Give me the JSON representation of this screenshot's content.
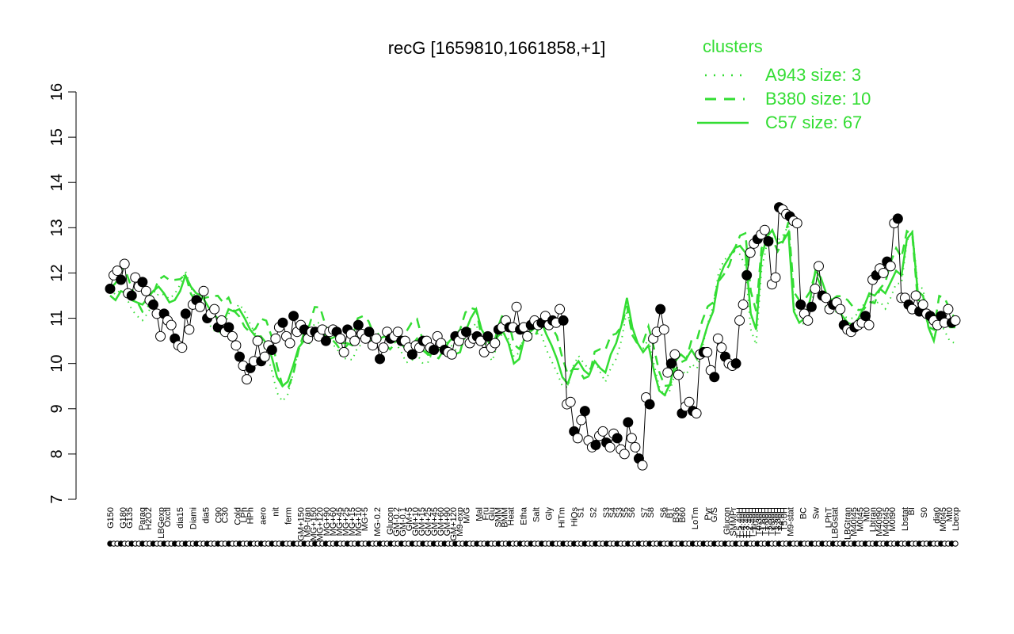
{
  "chart_data": {
    "type": "line",
    "title": "recG [1659810,1661858,+1]",
    "xlabel": "",
    "ylabel": "",
    "ylim": [
      7,
      16
    ],
    "yticks": [
      7,
      8,
      9,
      10,
      11,
      12,
      13,
      14,
      15,
      16
    ],
    "grid": false,
    "legend": {
      "title": "clusters",
      "placement": "top-right",
      "entries": [
        {
          "label": "A943 size: 3",
          "style": "dotted"
        },
        {
          "label": "B380 size: 10",
          "style": "dashed"
        },
        {
          "label": "C57 size: 67",
          "style": "solid"
        }
      ]
    },
    "colors": {
      "lines": "#33dd33",
      "points": "#000000",
      "legend_text": "#33dd33"
    },
    "x_tick_labels": [
      {
        "label": "G150",
        "x": 1
      },
      {
        "label": "G180",
        "x": 3
      },
      {
        "label": "G135",
        "x": 4
      },
      {
        "label": "Paraq",
        "x": 6
      },
      {
        "label": "H2O2",
        "x": 7
      },
      {
        "label": "LBGexp",
        "x": 9
      },
      {
        "label": "Oxctl",
        "x": 10
      },
      {
        "label": "dia15",
        "x": 12
      },
      {
        "label": "Diami",
        "x": 14
      },
      {
        "label": "dia5",
        "x": 16
      },
      {
        "label": "C90",
        "x": 18
      },
      {
        "label": "C30",
        "x": 19
      },
      {
        "label": "Cold",
        "x": 21
      },
      {
        "label": "LPh",
        "x": 22
      },
      {
        "label": "HPh",
        "x": 23
      },
      {
        "label": "aero",
        "x": 25
      },
      {
        "label": "nit",
        "x": 27
      },
      {
        "label": "ferm",
        "x": 29
      },
      {
        "label": "GM+150",
        "x": 31
      },
      {
        "label": "M9-tran",
        "x": 32
      },
      {
        "label": "MG+150",
        "x": 33
      },
      {
        "label": "MG+120",
        "x": 34
      },
      {
        "label": "MG+90",
        "x": 35
      },
      {
        "label": "MG+60",
        "x": 36
      },
      {
        "label": "MG+45",
        "x": 37
      },
      {
        "label": "MG+25",
        "x": 38
      },
      {
        "label": "MG+15",
        "x": 39
      },
      {
        "label": "MG+10",
        "x": 40
      },
      {
        "label": "MG+5",
        "x": 41
      },
      {
        "label": "MG-0.2",
        "x": 43
      },
      {
        "label": "Glucon",
        "x": 45
      },
      {
        "label": "GM-0.2",
        "x": 46
      },
      {
        "label": "GM-0.1",
        "x": 47
      },
      {
        "label": "GM+5",
        "x": 48
      },
      {
        "label": "GM+10",
        "x": 49
      },
      {
        "label": "GM+15",
        "x": 50
      },
      {
        "label": "GM+25",
        "x": 51
      },
      {
        "label": "GM+45",
        "x": 52
      },
      {
        "label": "GM+60",
        "x": 53
      },
      {
        "label": "GM+90",
        "x": 54
      },
      {
        "label": "GM+120",
        "x": 55
      },
      {
        "label": "M9-exp",
        "x": 56
      },
      {
        "label": "M/G",
        "x": 57
      },
      {
        "label": "Mal",
        "x": 59
      },
      {
        "label": "Fru",
        "x": 60
      },
      {
        "label": "Glu",
        "x": 61
      },
      {
        "label": "SMM",
        "x": 62
      },
      {
        "label": "BMM",
        "x": 63
      },
      {
        "label": "Heat",
        "x": 64
      },
      {
        "label": "Etha",
        "x": 66
      },
      {
        "label": "Salt",
        "x": 68
      },
      {
        "label": "Gly",
        "x": 70
      },
      {
        "label": "HiTm",
        "x": 72
      },
      {
        "label": "HiOs",
        "x": 74
      },
      {
        "label": "S1",
        "x": 75
      },
      {
        "label": "S2",
        "x": 77
      },
      {
        "label": "S3",
        "x": 79
      },
      {
        "label": "S4",
        "x": 80
      },
      {
        "label": "S3",
        "x": 81
      },
      {
        "label": "S5",
        "x": 82
      },
      {
        "label": "S6",
        "x": 83
      },
      {
        "label": "S7",
        "x": 85
      },
      {
        "label": "S8",
        "x": 86
      },
      {
        "label": "S6",
        "x": 88
      },
      {
        "label": "BT",
        "x": 89
      },
      {
        "label": "B36",
        "x": 90
      },
      {
        "label": "B60",
        "x": 91
      },
      {
        "label": "LoTm",
        "x": 93
      },
      {
        "label": "Pyr",
        "x": 95
      },
      {
        "label": "G/S",
        "x": 96
      },
      {
        "label": "Glucon",
        "x": 98
      },
      {
        "label": "SMMPr",
        "x": 99
      },
      {
        "label": "T-5.40H",
        "x": 100
      },
      {
        "label": "T-4.40H",
        "x": 100.5
      },
      {
        "label": "T-3.40H",
        "x": 101
      },
      {
        "label": "T-2.40H",
        "x": 101.5
      },
      {
        "label": "T-1.40H",
        "x": 102
      },
      {
        "label": "T0.0H",
        "x": 102.5
      },
      {
        "label": "T0.30H",
        "x": 103
      },
      {
        "label": "T1.0H",
        "x": 103.5
      },
      {
        "label": "T1.30H",
        "x": 104
      },
      {
        "label": "T2.0H",
        "x": 104.5
      },
      {
        "label": "T2.30H",
        "x": 105
      },
      {
        "label": "T3.0H",
        "x": 105.5
      },
      {
        "label": "T3.30H",
        "x": 106
      },
      {
        "label": "T4.0H",
        "x": 106.5
      },
      {
        "label": "T5.0H",
        "x": 107
      },
      {
        "label": "M9-stat",
        "x": 108
      },
      {
        "label": "BC",
        "x": 110
      },
      {
        "label": "Sw",
        "x": 112
      },
      {
        "label": "LPhT",
        "x": 114
      },
      {
        "label": "LBGstat",
        "x": 115
      },
      {
        "label": "LBGtran",
        "x": 117
      },
      {
        "label": "M40t45",
        "x": 118
      },
      {
        "label": "M0t45",
        "x": 119
      },
      {
        "label": "Mt0",
        "x": 120
      },
      {
        "label": "Lbtran",
        "x": 121
      },
      {
        "label": "M40t90",
        "x": 122
      },
      {
        "label": "M40t45",
        "x": 123
      },
      {
        "label": "M0t90",
        "x": 124
      },
      {
        "label": "Lbstat",
        "x": 126
      },
      {
        "label": "BI",
        "x": 127
      },
      {
        "label": "S0",
        "x": 129
      },
      {
        "label": "dia0",
        "x": 131
      },
      {
        "label": "M0t45",
        "x": 132
      },
      {
        "label": "Mt0",
        "x": 133
      },
      {
        "label": "Lbexp",
        "x": 134
      }
    ],
    "series": [
      {
        "name": "",
        "values": [
          11.65,
          11.95,
          12.05,
          11.85,
          12.2,
          11.55,
          11.5,
          11.9,
          11.7,
          11.8,
          11.6,
          11.4,
          11.3,
          11.1,
          10.6,
          11.1,
          10.95,
          10.85,
          10.55,
          10.4,
          10.35,
          11.1,
          10.75,
          11.3,
          11.4,
          11.25,
          11.6,
          11.0,
          11.1,
          11.2,
          10.8,
          10.95,
          10.7,
          10.8,
          10.6,
          10.4,
          10.15,
          9.95,
          9.65,
          9.9,
          10.05,
          10.5,
          10.05,
          10.15,
          10.4,
          10.3,
          10.55,
          10.8,
          10.9,
          10.6,
          10.45,
          11.05,
          10.7,
          10.85,
          10.75,
          10.55,
          10.7,
          10.7,
          10.6,
          10.75,
          10.5,
          10.7,
          10.75,
          10.7,
          10.55,
          10.25,
          10.75,
          10.65,
          10.5,
          10.85,
          10.65,
          10.55,
          10.7,
          10.4,
          10.55,
          10.1,
          10.35,
          10.7,
          10.55,
          10.6,
          10.7,
          10.5,
          10.5,
          10.35,
          10.2,
          10.4,
          10.35,
          10.5,
          10.5,
          10.35,
          10.3,
          10.6,
          10.45,
          10.3,
          10.25,
          10.2,
          10.6,
          10.5,
          10.65,
          10.7,
          10.45,
          10.55,
          10.6,
          10.5,
          10.25,
          10.6,
          10.35,
          10.45,
          10.75,
          10.8,
          10.95,
          10.8,
          10.8,
          11.25,
          10.75,
          10.8,
          10.6,
          10.85,
          10.95,
          10.85,
          10.9,
          11.05,
          10.85,
          10.95,
          10.9,
          11.2,
          10.95,
          9.1,
          9.15,
          8.5,
          8.35,
          8.75,
          8.95,
          8.3,
          8.15,
          8.2,
          8.4,
          8.5,
          8.25,
          8.15,
          8.45,
          8.35,
          8.1,
          8.0,
          8.7,
          8.35,
          8.15,
          7.9,
          7.75,
          9.25,
          9.1,
          10.55,
          10.7,
          11.2,
          10.75,
          9.8,
          10.0,
          10.2,
          9.75,
          8.9,
          9.05,
          9.15,
          8.95,
          8.9,
          10.2,
          10.25,
          10.25,
          9.85,
          9.7,
          10.55,
          10.35,
          10.15,
          10.0,
          9.95,
          10.0,
          10.95,
          11.3,
          11.95,
          12.45,
          12.65,
          12.75,
          12.85,
          12.95,
          12.7,
          11.75,
          11.9,
          13.45,
          13.4,
          13.3,
          13.25,
          13.15,
          13.1,
          11.3,
          11.1,
          10.95,
          11.25,
          11.65,
          12.15,
          11.5,
          11.45,
          11.2,
          11.3,
          11.35,
          11.2,
          10.85,
          10.75,
          10.7,
          10.8,
          10.85,
          10.9,
          11.05,
          10.85,
          11.85,
          11.95,
          12.1,
          12.0,
          12.25,
          12.15,
          13.1,
          13.2,
          11.45,
          11.45,
          11.3,
          11.2,
          11.5,
          11.15,
          11.3,
          11.1,
          11.05,
          10.95,
          10.85,
          11.05,
          10.9,
          11.2,
          10.9,
          10.95
        ]
      }
    ],
    "median_lines": {
      "C57": [
        11.5,
        11.4,
        11.6,
        11.55,
        11.4,
        11.35,
        11.3,
        11.45,
        11.6,
        11.7,
        11.55,
        11.35,
        11.4,
        11.6,
        11.95,
        11.7,
        11.55,
        11.5,
        11.3,
        11.1,
        11.0,
        10.9,
        11.2,
        11.15,
        11.2,
        11.0,
        10.75,
        10.6,
        10.6,
        10.45,
        10.15,
        9.7,
        9.5,
        9.6,
        9.95,
        10.35,
        10.5,
        10.45,
        10.75,
        10.8,
        10.6,
        10.55,
        10.6,
        10.45,
        10.45,
        10.4,
        10.6,
        10.55,
        10.5,
        10.4,
        10.55,
        10.6,
        10.5,
        10.5,
        10.45,
        10.3,
        10.4,
        10.55,
        10.3,
        10.2,
        10.35,
        10.3,
        10.35,
        10.3,
        10.2,
        10.25,
        10.7,
        11.0,
        11.2,
        10.75,
        10.55,
        10.3,
        10.6,
        10.7,
        10.45,
        10.0,
        10.1,
        10.6,
        10.7,
        10.8,
        10.95,
        10.65,
        10.4,
        10.1,
        9.7,
        9.55,
        9.9,
        10.05,
        9.85,
        9.75,
        10.05,
        9.9,
        9.8,
        10.2,
        10.45,
        10.85,
        11.45,
        10.8,
        10.45,
        10.25,
        10.4,
        9.85,
        9.4,
        9.3,
        9.55,
        10.05,
        10.2,
        10.1,
        10.3,
        10.1,
        10.45,
        10.85,
        11.15,
        11.85,
        12.15,
        12.35,
        12.55,
        12.6,
        12.45,
        11.1,
        10.75,
        12.35,
        12.8,
        12.95,
        12.65,
        12.7,
        12.9,
        11.15,
        10.9,
        11.0,
        11.4,
        12.05,
        11.9,
        11.55,
        11.4,
        11.25,
        11.05,
        10.9,
        10.85,
        11.0,
        11.25,
        11.55,
        11.5,
        11.65,
        11.55,
        11.8,
        12.05,
        11.95,
        12.75,
        12.9,
        11.6,
        11.5,
        10.8,
        10.5,
        11.05,
        10.95,
        10.8,
        10.8
      ]
    },
    "n_points_shown": 228
  }
}
